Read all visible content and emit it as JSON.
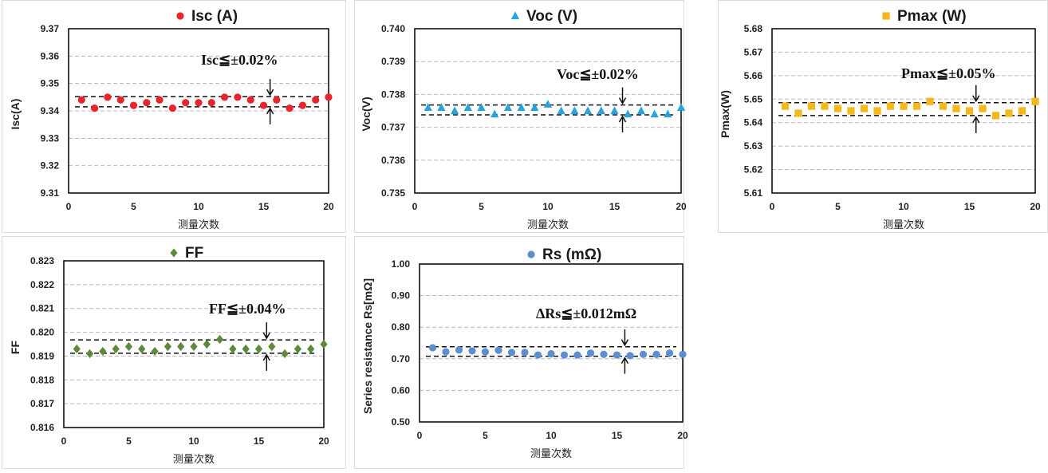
{
  "chart_data": [
    {
      "type": "scatter",
      "title": "Isc (A)",
      "marker": "circle",
      "color": "#e8252a",
      "xlabel": "测量次数",
      "ylabel": "Isc(A)",
      "xlim": [
        0,
        20
      ],
      "ylim": [
        9.31,
        9.37
      ],
      "xticks": [
        "0",
        "5",
        "10",
        "15",
        "20"
      ],
      "yticks": [
        "9.31",
        "9.32",
        "9.33",
        "9.34",
        "9.35",
        "9.36",
        "9.37"
      ],
      "x": [
        1,
        2,
        3,
        4,
        5,
        6,
        7,
        8,
        9,
        10,
        11,
        12,
        13,
        14,
        15,
        16,
        17,
        18,
        19,
        20
      ],
      "y": [
        9.344,
        9.341,
        9.345,
        9.344,
        9.342,
        9.343,
        9.344,
        9.341,
        9.343,
        9.343,
        9.343,
        9.345,
        9.345,
        9.344,
        9.342,
        9.344,
        9.341,
        9.342,
        9.344,
        9.345
      ],
      "bounds": [
        9.3452,
        9.3415
      ],
      "annotation": "Isc≦±0.02%",
      "arrow_x": 15.5,
      "grid": true
    },
    {
      "type": "scatter",
      "title": "Voc (V)",
      "marker": "triangle",
      "color": "#27a3dd",
      "xlabel": "测量次数",
      "ylabel": "Voc(V)",
      "xlim": [
        0,
        20
      ],
      "ylim": [
        0.735,
        0.74
      ],
      "xticks": [
        "0",
        "5",
        "10",
        "15",
        "20"
      ],
      "yticks": [
        "0.735",
        "0.736",
        "0.737",
        "0.738",
        "0.739",
        "0.740"
      ],
      "x": [
        1,
        2,
        3,
        4,
        5,
        6,
        7,
        8,
        9,
        10,
        11,
        12,
        13,
        14,
        15,
        16,
        17,
        18,
        19,
        20
      ],
      "y": [
        0.7376,
        0.7376,
        0.7375,
        0.7376,
        0.7376,
        0.7374,
        0.7376,
        0.7376,
        0.7376,
        0.7377,
        0.7375,
        0.7375,
        0.7375,
        0.7375,
        0.7375,
        0.7374,
        0.7375,
        0.7374,
        0.7374,
        0.7376
      ],
      "bounds": [
        0.73768,
        0.73738
      ],
      "annotation": "Voc≦±0.02%",
      "arrow_x": 15.6,
      "grid": true
    },
    {
      "type": "scatter",
      "title": "Pmax (W)",
      "marker": "square",
      "color": "#f5b81c",
      "xlabel": "测量次数",
      "ylabel": "Pmax(W)",
      "xlim": [
        0,
        20
      ],
      "ylim": [
        5.61,
        5.68
      ],
      "xticks": [
        "0",
        "5",
        "10",
        "15",
        "20"
      ],
      "yticks": [
        "5.61",
        "5.62",
        "5.63",
        "5.64",
        "5.65",
        "5.66",
        "5.67",
        "5.68"
      ],
      "x": [
        1,
        2,
        3,
        4,
        5,
        6,
        7,
        8,
        9,
        10,
        11,
        12,
        13,
        14,
        15,
        16,
        17,
        18,
        19,
        20
      ],
      "y": [
        5.647,
        5.644,
        5.647,
        5.647,
        5.646,
        5.645,
        5.646,
        5.645,
        5.647,
        5.647,
        5.647,
        5.649,
        5.647,
        5.646,
        5.645,
        5.646,
        5.643,
        5.644,
        5.645,
        5.649
      ],
      "bounds": [
        5.6485,
        5.643
      ],
      "annotation": "Pmax≦±0.05%",
      "arrow_x": 15.5,
      "grid": true
    },
    {
      "type": "scatter",
      "title": "FF",
      "marker": "diamond",
      "color": "#5a8a3a",
      "xlabel": "测量次数",
      "ylabel": "FF",
      "xlim": [
        0,
        20
      ],
      "ylim": [
        0.816,
        0.823
      ],
      "xticks": [
        "0",
        "5",
        "10",
        "15",
        "20"
      ],
      "yticks": [
        "0.816",
        "0.817",
        "0.818",
        "0.819",
        "0.820",
        "0.821",
        "0.822",
        "0.823"
      ],
      "x": [
        1,
        2,
        3,
        4,
        5,
        6,
        7,
        8,
        9,
        10,
        11,
        12,
        13,
        14,
        15,
        16,
        17,
        18,
        19,
        20
      ],
      "y": [
        0.8193,
        0.8191,
        0.8192,
        0.8193,
        0.8194,
        0.8193,
        0.8192,
        0.8194,
        0.8194,
        0.8194,
        0.8195,
        0.8197,
        0.8193,
        0.8193,
        0.8193,
        0.8194,
        0.8191,
        0.8193,
        0.8193,
        0.8195
      ],
      "bounds": [
        0.81968,
        0.81912
      ],
      "annotation": "FF≦±0.04%",
      "arrow_x": 15.6,
      "grid": true
    },
    {
      "type": "scatter",
      "title": "Rs (mΩ)",
      "marker": "circle",
      "color": "#5b8fd0",
      "xlabel": "测量次数",
      "ylabel": "Series resistance Rs[mΩ]",
      "xlim": [
        0,
        20
      ],
      "ylim": [
        0.5,
        1.0
      ],
      "xticks": [
        "0",
        "5",
        "10",
        "15",
        "20"
      ],
      "yticks": [
        "0.50",
        "0.60",
        "0.70",
        "0.80",
        "0.90",
        "1.00"
      ],
      "x": [
        1,
        2,
        3,
        4,
        5,
        6,
        7,
        8,
        9,
        10,
        11,
        12,
        13,
        14,
        15,
        16,
        17,
        18,
        19,
        20
      ],
      "y": [
        0.735,
        0.722,
        0.728,
        0.725,
        0.722,
        0.727,
        0.72,
        0.72,
        0.712,
        0.716,
        0.712,
        0.712,
        0.718,
        0.714,
        0.712,
        0.71,
        0.714,
        0.714,
        0.718,
        0.714
      ],
      "bounds": [
        0.738,
        0.708
      ],
      "annotation": "ΔRs≦±0.012mΩ",
      "arrow_x": 15.6,
      "grid": true
    }
  ]
}
